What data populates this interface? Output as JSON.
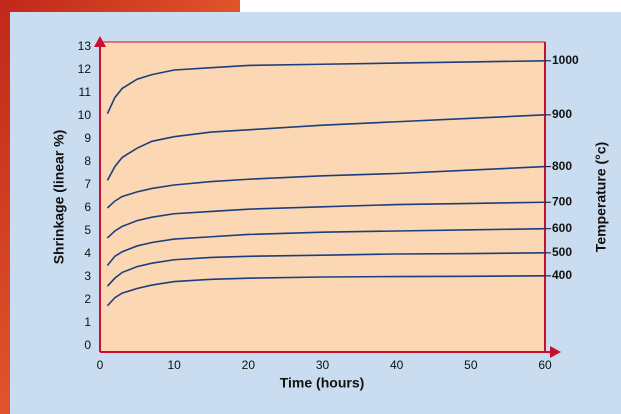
{
  "chart_data": {
    "type": "line",
    "xlabel": "Time (hours)",
    "ylabel": "Shrinkage (linear %)",
    "y2label": "Temperature (°c)",
    "x": [
      1,
      2,
      3,
      5,
      7,
      10,
      15,
      20,
      30,
      40,
      50,
      60
    ],
    "series": [
      {
        "name": "1000",
        "color": "#1c3f7c",
        "values": [
          10.1,
          10.8,
          11.2,
          11.6,
          11.8,
          12.0,
          12.1,
          12.2,
          12.25,
          12.3,
          12.35,
          12.4
        ]
      },
      {
        "name": "900",
        "color": "#1c3f7c",
        "values": [
          7.2,
          7.8,
          8.2,
          8.6,
          8.9,
          9.1,
          9.3,
          9.4,
          9.6,
          9.75,
          9.9,
          10.05
        ]
      },
      {
        "name": "800",
        "color": "#1c3f7c",
        "values": [
          6.0,
          6.3,
          6.5,
          6.7,
          6.85,
          7.0,
          7.15,
          7.25,
          7.4,
          7.5,
          7.65,
          7.8
        ]
      },
      {
        "name": "700",
        "color": "#1c3f7c",
        "values": [
          4.7,
          5.0,
          5.2,
          5.45,
          5.6,
          5.75,
          5.85,
          5.95,
          6.05,
          6.15,
          6.2,
          6.25
        ]
      },
      {
        "name": "600",
        "color": "#1c3f7c",
        "values": [
          3.5,
          3.9,
          4.1,
          4.35,
          4.5,
          4.65,
          4.75,
          4.85,
          4.95,
          5.0,
          5.05,
          5.1
        ]
      },
      {
        "name": "500",
        "color": "#1c3f7c",
        "values": [
          2.6,
          2.95,
          3.2,
          3.45,
          3.6,
          3.75,
          3.85,
          3.9,
          3.95,
          4.0,
          4.02,
          4.05
        ]
      },
      {
        "name": "400",
        "color": "#1c3f7c",
        "values": [
          1.75,
          2.1,
          2.3,
          2.5,
          2.65,
          2.8,
          2.9,
          2.95,
          3.0,
          3.02,
          3.03,
          3.05
        ]
      }
    ],
    "xlim": [
      0,
      60
    ],
    "xticks": [
      0,
      10,
      20,
      30,
      40,
      50,
      60
    ],
    "ylim": [
      0,
      13
    ],
    "yticks": [
      0,
      1,
      2,
      3,
      4,
      5,
      6,
      7,
      8,
      9,
      10,
      11,
      12,
      13
    ]
  }
}
